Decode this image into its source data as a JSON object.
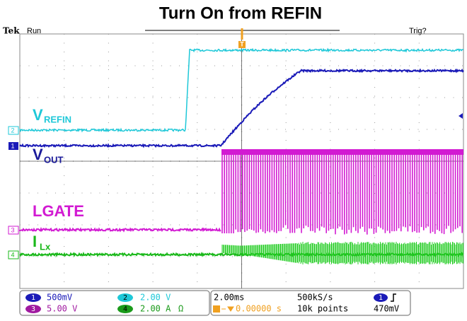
{
  "header": {
    "title": "Turn On from REFIN",
    "brand": "Tek",
    "status": "Run",
    "trigger_status": "Trig?",
    "trigger_marker": "T"
  },
  "traces": {
    "vrefin": {
      "main": "V",
      "sub": "REFIN"
    },
    "vout": {
      "main": "V",
      "sub": "OUT"
    },
    "lgate": {
      "main": "LGATE"
    },
    "ilx": {
      "main": "I",
      "sub": "Lx"
    }
  },
  "channels": [
    {
      "number": "1",
      "scale": "500mV"
    },
    {
      "number": "2",
      "scale": "2.00 V"
    },
    {
      "number": "3",
      "scale": "5.00 V"
    },
    {
      "number": "4",
      "scale": "2.00 A",
      "coupling": "Ω"
    }
  ],
  "timebase": {
    "scale": "2.00ms",
    "sample_rate": "500kS/s",
    "position": "0.00000 s",
    "record_length": "10k points",
    "trigger_source": "1",
    "trigger_level": "470mV"
  }
}
